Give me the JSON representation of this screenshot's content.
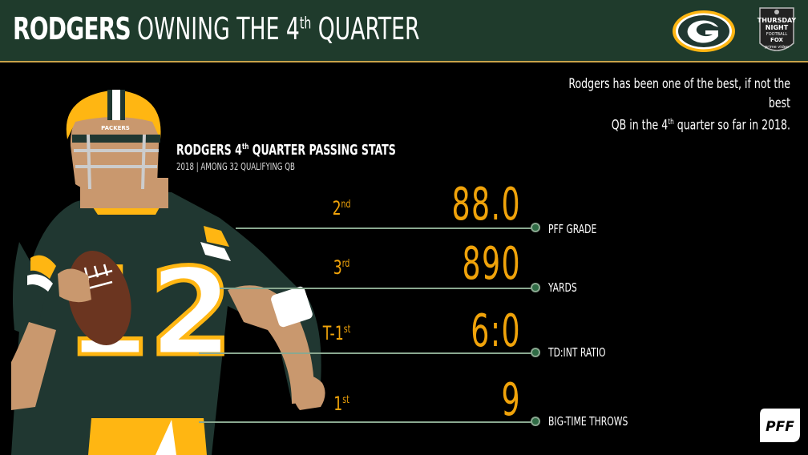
{
  "header": {
    "title_bold": "RODGERS",
    "title_rest": "OWNING THE 4",
    "title_sup": "th",
    "title_end": " QUARTER",
    "team_logo_icon": "packers-g-logo-icon",
    "broadcast_logo": {
      "lines": [
        "THURSDAY",
        "NIGHT",
        "FOOTBALL",
        "FOX",
        "prime video"
      ]
    }
  },
  "note": {
    "line1": "Rodgers has been one of the best, if not the best",
    "line2_pre": "QB in the 4",
    "line2_sup": "th",
    "line2_post": " quarter so far in 2018."
  },
  "stats_heading": {
    "title_pre": "RODGERS 4",
    "title_sup": "th",
    "title_post": " QUARTER PASSING STATS",
    "subtitle": "2018 | AMONG 32 QUALIFYING QB"
  },
  "stats": [
    {
      "rank": "2",
      "rank_sup": "nd",
      "value": "88.0",
      "label": "PFF GRADE"
    },
    {
      "rank": "3",
      "rank_sup": "rd",
      "value": "890",
      "label": "YARDS"
    },
    {
      "rank": "T-1",
      "rank_sup": "st",
      "value": "6:0",
      "label": "TD:INT RATIO"
    },
    {
      "rank": "1",
      "rank_sup": "st",
      "value": "9",
      "label": "BIG-TIME THROWS"
    }
  ],
  "player": {
    "jersey_number": "12",
    "helmet_text": "PACKERS"
  },
  "footer_logo": "PFF",
  "colors": {
    "header_bg": "#1f3b2c",
    "accent_gold": "#f0a30a",
    "line_green": "#8aa890",
    "jersey_green": "#203731",
    "packers_gold": "#ffb612"
  }
}
